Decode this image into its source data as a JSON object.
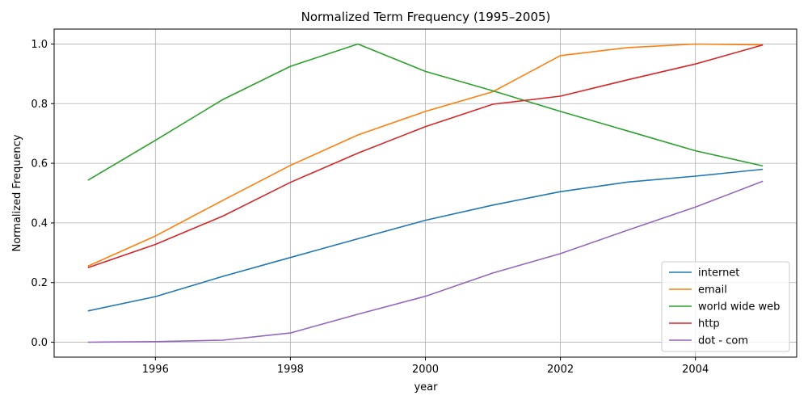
{
  "chart_data": {
    "type": "line",
    "title": "Normalized Term Frequency (1995–2005)",
    "xlabel": "year",
    "ylabel": "Normalized Frequency",
    "x": [
      1995,
      1996,
      1997,
      1998,
      1999,
      2000,
      2001,
      2002,
      2003,
      2004,
      2005
    ],
    "xlim": [
      1994.5,
      2005.5
    ],
    "ylim": [
      -0.05,
      1.05
    ],
    "xticks": [
      1996,
      1998,
      2000,
      2002,
      2004
    ],
    "xtick_labels": [
      "1996",
      "1998",
      "2000",
      "2002",
      "2004"
    ],
    "yticks": [
      0.0,
      0.2,
      0.4,
      0.6,
      0.8,
      1.0
    ],
    "ytick_labels": [
      "0.0",
      "0.2",
      "0.4",
      "0.6",
      "0.8",
      "1.0"
    ],
    "grid": true,
    "legend_position": "lower-right",
    "series": [
      {
        "name": "internet",
        "color": "#1f77b4",
        "values": [
          0.105,
          0.153,
          0.221,
          0.284,
          0.347,
          0.409,
          0.46,
          0.505,
          0.537,
          0.557,
          0.58
        ]
      },
      {
        "name": "email",
        "color": "#ff7f0e",
        "values": [
          0.255,
          0.356,
          0.476,
          0.593,
          0.695,
          0.774,
          0.84,
          0.961,
          0.988,
          1.0,
          0.997
        ]
      },
      {
        "name": "world wide web",
        "color": "#2ca02c",
        "values": [
          0.543,
          0.677,
          0.814,
          0.925,
          1.0,
          0.908,
          0.843,
          0.774,
          0.708,
          0.642,
          0.591
        ]
      },
      {
        "name": "http",
        "color": "#d62728",
        "values": [
          0.25,
          0.328,
          0.423,
          0.536,
          0.634,
          0.723,
          0.798,
          0.825,
          0.88,
          0.933,
          0.997
        ]
      },
      {
        "name": "dot - com",
        "color": "#9467bd",
        "values": [
          0.0,
          0.002,
          0.007,
          0.031,
          0.094,
          0.154,
          0.232,
          0.297,
          0.376,
          0.453,
          0.54
        ]
      }
    ]
  }
}
